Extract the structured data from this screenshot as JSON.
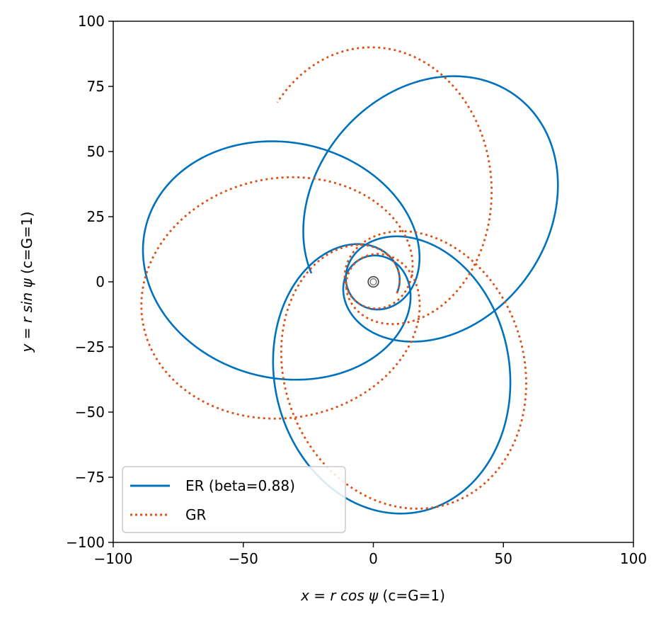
{
  "chart_data": {
    "type": "line",
    "xlabel_math": "x = r cos ψ",
    "xlabel_suffix": " (c=G=1)",
    "ylabel_math": "y = r sin ψ",
    "ylabel_suffix": " (c=G=1)",
    "xlim": [
      -100,
      100
    ],
    "ylim": [
      -100,
      100
    ],
    "x_ticks": [
      -100,
      -50,
      0,
      50,
      100
    ],
    "y_ticks": [
      -100,
      -75,
      -50,
      -25,
      0,
      25,
      50,
      75,
      100
    ],
    "x_tick_labels": [
      "−100",
      "−50",
      "0",
      "50",
      "100"
    ],
    "y_tick_labels": [
      "−100",
      "−75",
      "−50",
      "−25",
      "0",
      "25",
      "50",
      "75",
      "100"
    ],
    "grid": false,
    "legend_position": "lower-left",
    "series": [
      {
        "name": "ER (beta=0.88)",
        "color": "#0072bd",
        "style": "solid",
        "orbit": {
          "semi_latus": 18,
          "eccentricity": 0.8,
          "precession": 0.405,
          "start_angle": -0.05,
          "turns": 4.55
        }
      },
      {
        "name": "GR",
        "color": "#d95319",
        "style": "dotted",
        "orbit": {
          "semi_latus": 18,
          "eccentricity": 0.8,
          "precession": 0.42,
          "start_angle": -0.05,
          "turns": 4.4
        }
      }
    ],
    "central_body": {
      "x": 0,
      "y": 0,
      "r_outer": 2.0,
      "r_inner": 1.2
    }
  }
}
